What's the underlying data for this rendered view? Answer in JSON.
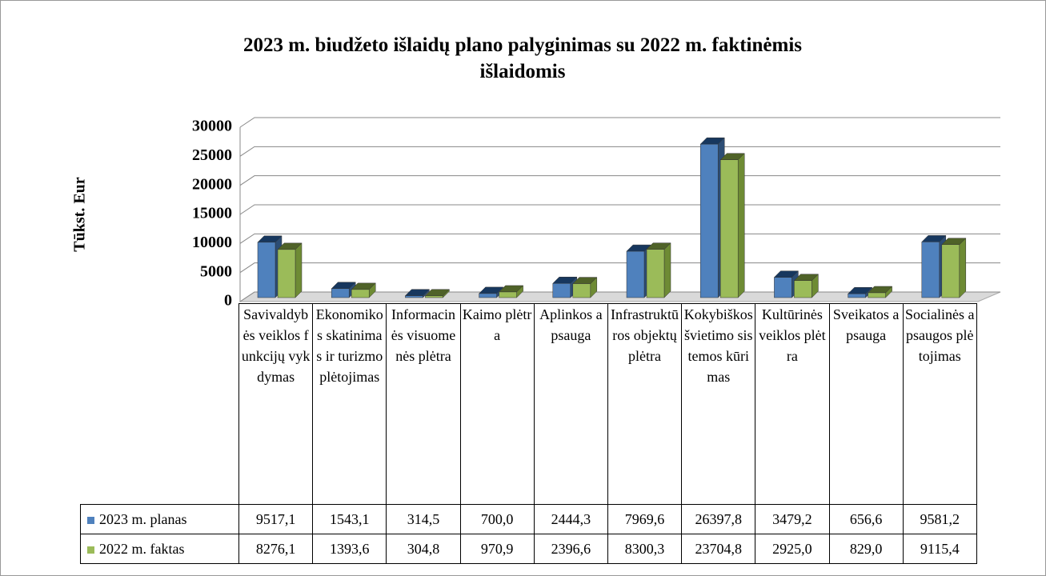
{
  "chart_data": {
    "type": "bar",
    "title": "2023 m. biudžeto išlaidų plano palyginimas su 2022 m. faktinėmis išlaidomis",
    "y_label": "Tūkst. Eur",
    "categories": [
      "Savivaldybės veiklos funkcijų vykdymas",
      "Ekonomikos skatinimas ir turizmo plėtojimas",
      "Informacinės visuomenės plėtra",
      "Kaimo plėtra",
      "Aplinkos apsauga",
      "Infrastruktūros objektų plėtra",
      "Kokybiškos švietimo sistemos kūrimas",
      "Kultūrinės veiklos plėtra",
      "Sveikatos apsauga",
      "Socialinės apsaugos plėtojimas"
    ],
    "series": [
      {
        "name": "2023 m. planas",
        "color": "#4f81bd",
        "values": [
          9517.1,
          1543.1,
          314.5,
          700,
          2444.3,
          7969.6,
          26397.8,
          3479.2,
          656.6,
          9581.2
        ],
        "value_labels": [
          "9517,1",
          "1543,1",
          "314,5",
          "700,0",
          "2444,3",
          "7969,6",
          "26397,8",
          "3479,2",
          "656,6",
          "9581,2"
        ]
      },
      {
        "name": "2022 m. faktas",
        "color": "#9bbb59",
        "values": [
          8276.1,
          1393.6,
          304.8,
          970.9,
          2396.6,
          8300.3,
          23704.8,
          2925,
          829,
          9115.4
        ],
        "value_labels": [
          "8276,1",
          "1393,6",
          "304,8",
          "970,9",
          "2396,6",
          "8300,3",
          "23704,8",
          "2925,0",
          "829,0",
          "9115,4"
        ]
      }
    ],
    "ylim": [
      0,
      30000
    ],
    "yticks": [
      0,
      5000,
      10000,
      15000,
      20000,
      25000,
      30000
    ],
    "grid": true
  }
}
